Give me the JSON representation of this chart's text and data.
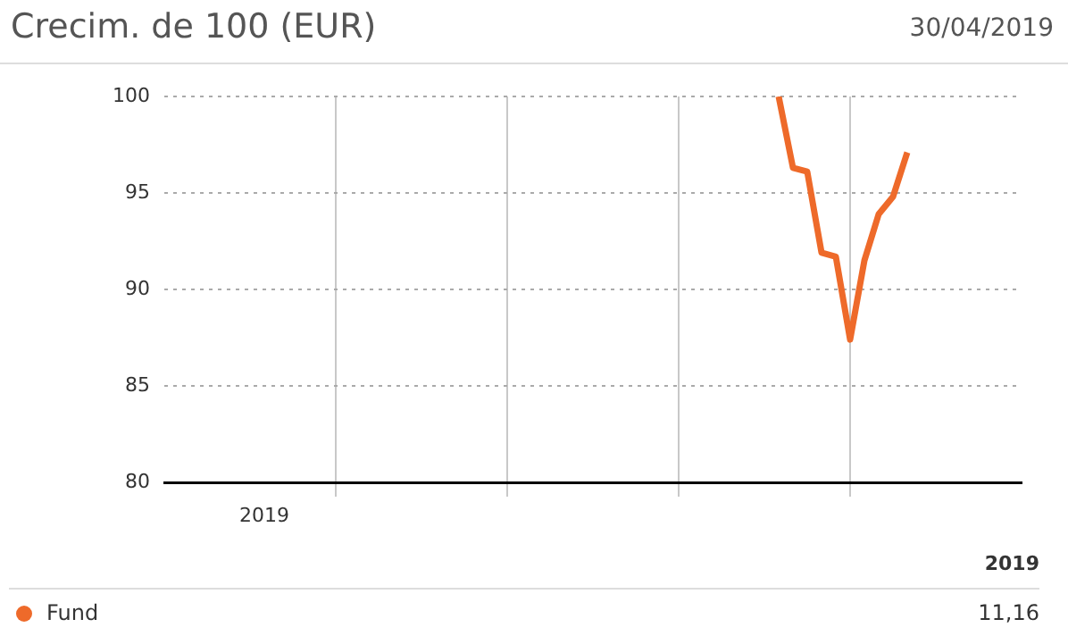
{
  "chart_data": {
    "type": "line",
    "title": "Crecim. de 100 (EUR)",
    "annotations": [
      "30/04/2019",
      "2019",
      "2019",
      "11,16"
    ],
    "categories": [
      null,
      null,
      null,
      null,
      null,
      null,
      null,
      null,
      null,
      null,
      null,
      null,
      null,
      null,
      null,
      null,
      null,
      null,
      null,
      null,
      null,
      null,
      null,
      null,
      null,
      null,
      null,
      null,
      null,
      null,
      null,
      null,
      null,
      null,
      null,
      null,
      null,
      null,
      null,
      null,
      null,
      null,
      null,
      null,
      null,
      null,
      null,
      null,
      null,
      null,
      null,
      null,
      null,
      null,
      null,
      null,
      null,
      null,
      null,
      null,
      null
    ],
    "series": [
      {
        "name": "Fund",
        "color": "#ee6a2a",
        "values": [
          null,
          null,
          null,
          null,
          null,
          null,
          null,
          null,
          null,
          null,
          null,
          null,
          null,
          null,
          null,
          null,
          null,
          null,
          null,
          null,
          null,
          null,
          null,
          null,
          null,
          null,
          null,
          null,
          null,
          null,
          null,
          null,
          null,
          null,
          null,
          null,
          null,
          null,
          null,
          null,
          null,
          null,
          null,
          100,
          96.3,
          96.1,
          91.9,
          91.7,
          87.4,
          91.5,
          93.9,
          94.8,
          97.1,
          null,
          null,
          null,
          null,
          null,
          null,
          null,
          null
        ]
      }
    ],
    "ylim": [
      80,
      100
    ],
    "yticks": [
      80,
      85,
      90,
      95,
      100
    ],
    "grid": true,
    "legend": "bottom",
    "marker": "none",
    "line_style": "solid"
  }
}
